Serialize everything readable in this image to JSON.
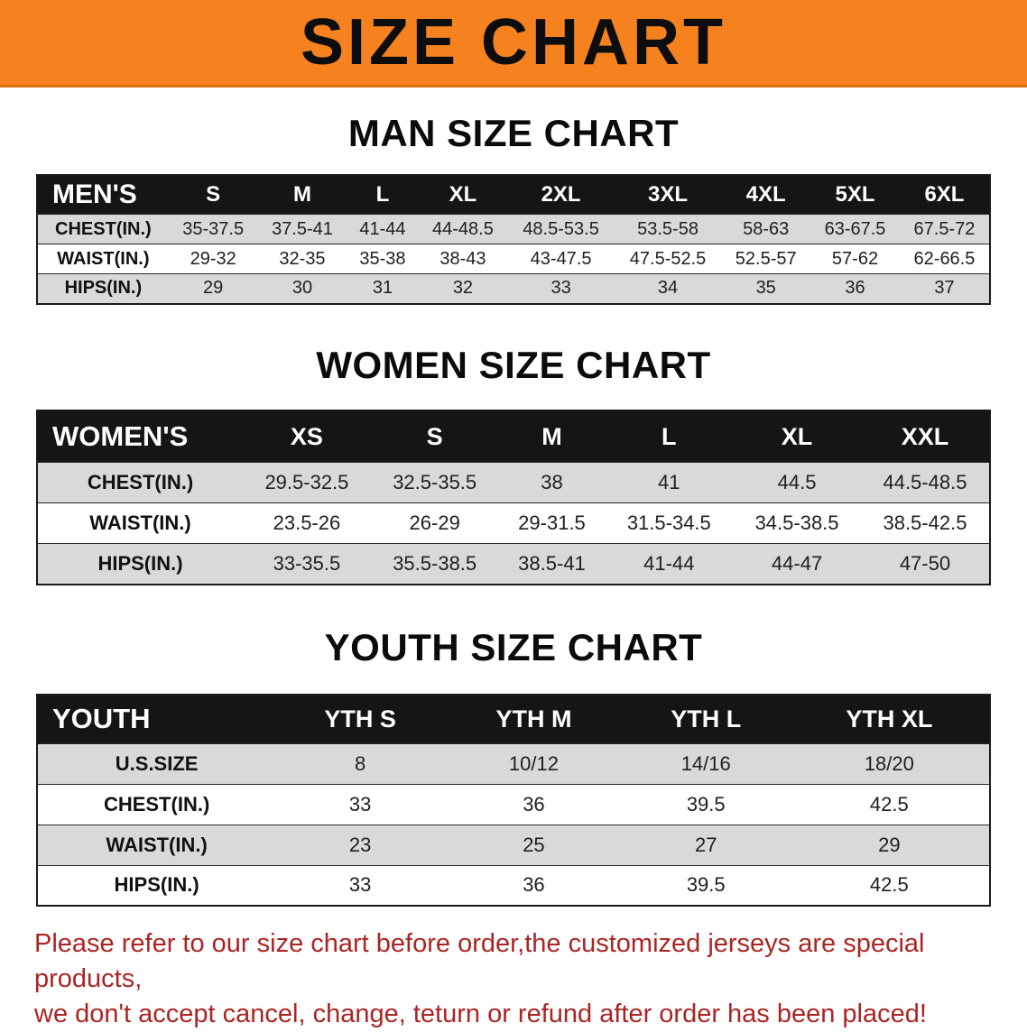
{
  "banner": {
    "title": "SIZE CHART"
  },
  "sections": {
    "men": {
      "heading": "MAN SIZE CHART"
    },
    "women": {
      "heading": "WOMEN SIZE CHART"
    },
    "youth": {
      "heading": "YOUTH SIZE CHART"
    }
  },
  "tables": {
    "men": {
      "header": [
        "MEN'S",
        "S",
        "M",
        "L",
        "XL",
        "2XL",
        "3XL",
        "4XL",
        "5XL",
        "6XL"
      ],
      "rows": [
        [
          "CHEST(IN.)",
          "35-37.5",
          "37.5-41",
          "41-44",
          "44-48.5",
          "48.5-53.5",
          "53.5-58",
          "58-63",
          "63-67.5",
          "67.5-72"
        ],
        [
          "WAIST(IN.)",
          "29-32",
          "32-35",
          "35-38",
          "38-43",
          "43-47.5",
          "47.5-52.5",
          "52.5-57",
          "57-62",
          "62-66.5"
        ],
        [
          "HIPS(IN.)",
          "29",
          "30",
          "31",
          "32",
          "33",
          "34",
          "35",
          "36",
          "37"
        ]
      ]
    },
    "women": {
      "header": [
        "WOMEN'S",
        "XS",
        "S",
        "M",
        "L",
        "XL",
        "XXL"
      ],
      "rows": [
        [
          "CHEST(IN.)",
          "29.5-32.5",
          "32.5-35.5",
          "38",
          "41",
          "44.5",
          "44.5-48.5"
        ],
        [
          "WAIST(IN.)",
          "23.5-26",
          "26-29",
          "29-31.5",
          "31.5-34.5",
          "34.5-38.5",
          "38.5-42.5"
        ],
        [
          "HIPS(IN.)",
          "33-35.5",
          "35.5-38.5",
          "38.5-41",
          "41-44",
          "44-47",
          "47-50"
        ]
      ]
    },
    "youth": {
      "header": [
        "YOUTH",
        "YTH S",
        "YTH M",
        "YTH L",
        "YTH XL"
      ],
      "rows": [
        [
          "U.S.SIZE",
          "8",
          "10/12",
          "14/16",
          "18/20"
        ],
        [
          "CHEST(IN.)",
          "33",
          "36",
          "39.5",
          "42.5"
        ],
        [
          "WAIST(IN.)",
          "23",
          "25",
          "27",
          "29"
        ],
        [
          "HIPS(IN.)",
          "33",
          "36",
          "39.5",
          "42.5"
        ]
      ]
    }
  },
  "disclaimer": {
    "line1": "Please refer to our size chart before order,the customized jerseys are special products,",
    "line2": "we don't accept cancel, change, teturn or refund after order has been placed!"
  },
  "colors": {
    "banner_bg": "#f5821f",
    "header_bar_bg": "#151515",
    "alt_row_bg": "#d9d9d9",
    "disclaimer_text": "#ab2524"
  }
}
